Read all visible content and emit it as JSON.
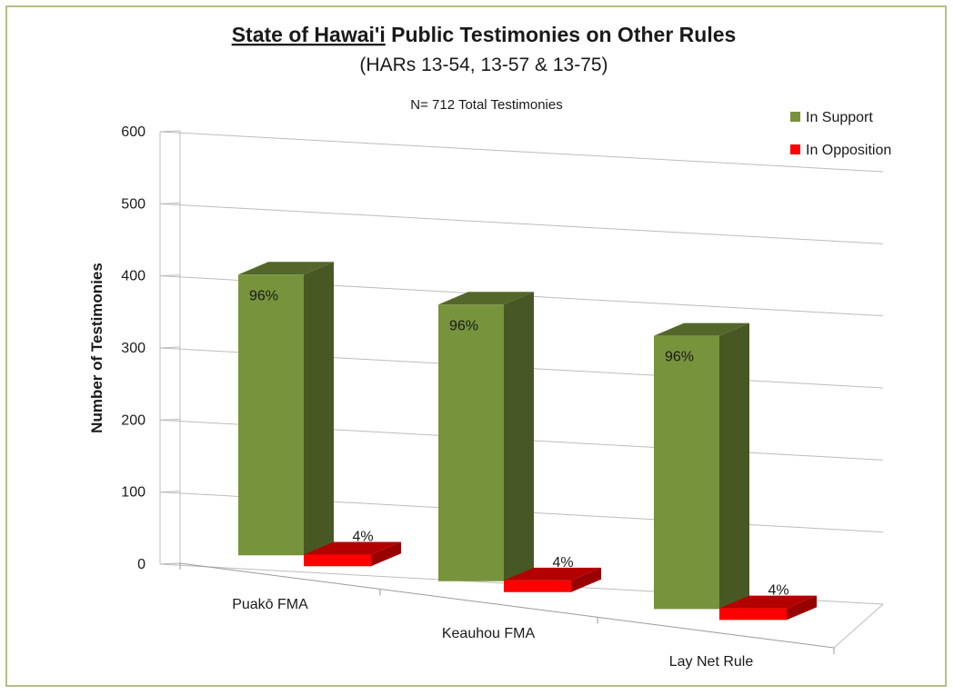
{
  "chart_data": {
    "type": "bar",
    "title_underlined": "State of Hawai'i",
    "title_rest": " Public Testimonies on Other Rules",
    "subtitle": "(HARs 13-54, 13-57 & 13-75)",
    "annotation": "N= 712 Total Testimonies",
    "ylabel": "Number of Testimonies",
    "ylim": [
      0,
      600
    ],
    "yticks": [
      0,
      100,
      200,
      300,
      400,
      500,
      600
    ],
    "categories": [
      "Puakō FMA",
      "Keauhou FMA",
      "Lay Net Rule"
    ],
    "series": [
      {
        "name": "In Support",
        "color": "#77933c",
        "values": [
          410,
          404,
          399
        ],
        "labels": [
          "96%",
          "96%",
          "96%"
        ]
      },
      {
        "name": "In Opposition",
        "color": "#ff0000",
        "values": [
          17,
          17,
          17
        ],
        "labels": [
          "4%",
          "4%",
          "4%"
        ]
      }
    ],
    "legend_position": "top-right",
    "grid": true
  }
}
